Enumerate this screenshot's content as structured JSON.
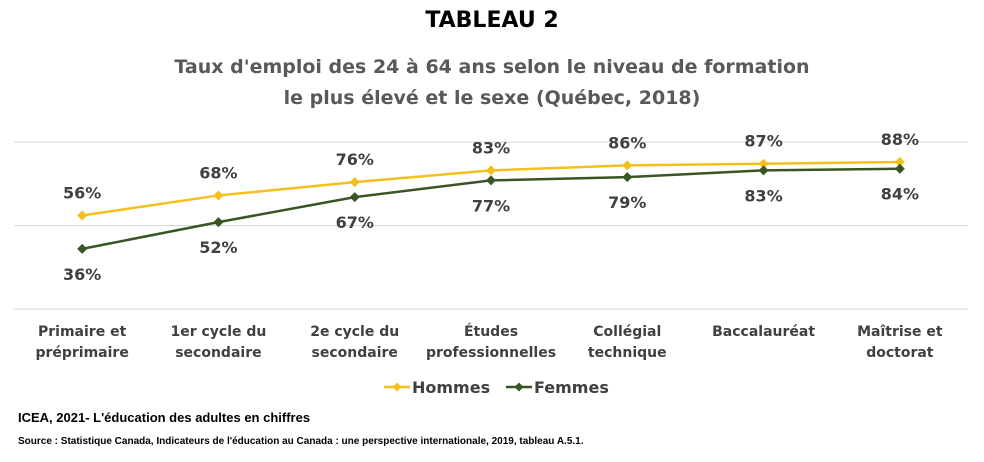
{
  "title": "TABLEAU 2",
  "subtitle_line1": "Taux d'emploi des 24 à 64 ans selon le niveau de formation",
  "subtitle_line2": "le plus élevé et le sexe (Québec, 2018)",
  "footer_line1": "ICEA, 2021- L'éducation des adultes en chiffres",
  "footer_line2": "Source : Statistique Canada,  Indicateurs de l'éducation au Canada : une perspective internationale,  2019, tableau A.5.1.",
  "chart_data": {
    "type": "line",
    "categories": [
      [
        "Primaire et",
        "préprimaire"
      ],
      [
        "1er cycle du",
        "secondaire"
      ],
      [
        "2e cycle du",
        "secondaire"
      ],
      [
        "Études",
        "professionnelles"
      ],
      [
        "Collégial",
        "technique"
      ],
      [
        "Baccalauréat"
      ],
      [
        "Maîtrise et",
        "doctorat"
      ]
    ],
    "series": [
      {
        "name": "Hommes",
        "values": [
          56,
          68,
          76,
          83,
          86,
          87,
          88
        ],
        "labels": [
          "56%",
          "68%",
          "76%",
          "83%",
          "86%",
          "87%",
          "88%"
        ],
        "color": "#F5C01B"
      },
      {
        "name": "Femmes",
        "values": [
          36,
          52,
          67,
          77,
          79,
          83,
          84
        ],
        "labels": [
          "36%",
          "52%",
          "67%",
          "77%",
          "79%",
          "83%",
          "84%"
        ],
        "color": "#375623"
      }
    ],
    "ylim": [
      0,
      100
    ],
    "grid": true,
    "legend": "bottom"
  }
}
